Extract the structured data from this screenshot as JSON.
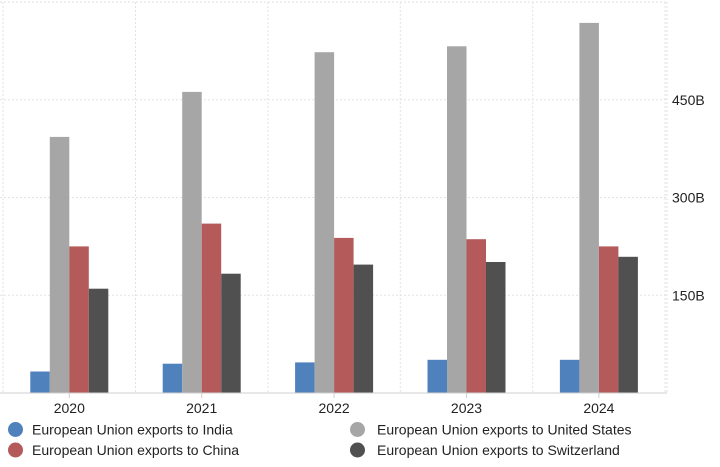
{
  "chart_data": {
    "type": "bar",
    "title": "",
    "xlabel": "",
    "ylabel": "",
    "categories": [
      "2020",
      "2021",
      "2022",
      "2023",
      "2024"
    ],
    "ylim": [
      0,
      600
    ],
    "yticks": [
      150,
      300,
      450
    ],
    "ytick_labels": [
      "150B",
      "300B",
      "450B"
    ],
    "y_axis_side": "right",
    "grid": true,
    "legend_position": "bottom",
    "series": [
      {
        "name": "European Union exports to India",
        "color": "#4f81bd",
        "values": [
          33,
          45,
          47,
          51,
          51
        ]
      },
      {
        "name": "European Union exports to United States",
        "color": "#a6a6a6",
        "values": [
          393,
          462,
          523,
          532,
          568
        ]
      },
      {
        "name": "European Union exports to China",
        "color": "#b45a5a",
        "values": [
          225,
          260,
          238,
          236,
          225
        ]
      },
      {
        "name": "European Union exports to Switzerland",
        "color": "#505050",
        "values": [
          160,
          183,
          197,
          201,
          209
        ]
      }
    ]
  }
}
